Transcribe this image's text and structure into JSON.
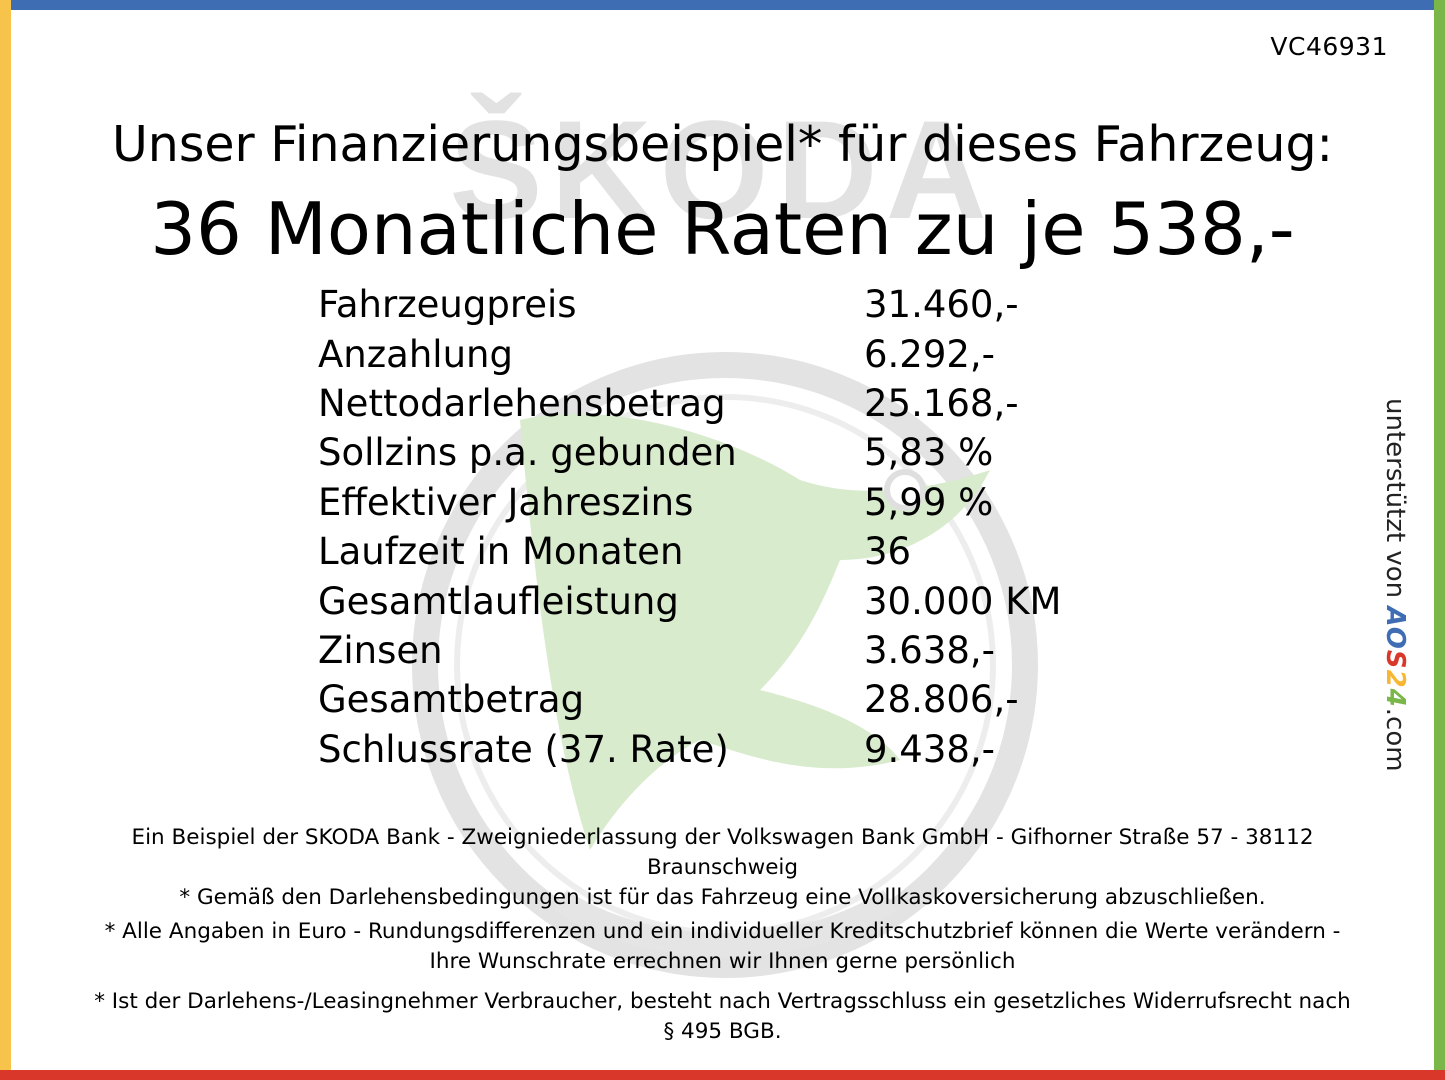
{
  "ref_code": "VC46931",
  "title_line1": "Unser Finanzierungsbeispiel* für dieses Fahrzeug:",
  "title_line2": "36 Monatliche Raten zu je 538,-",
  "watermark_text": "ŠKODA",
  "finance_rows": [
    {
      "label": "Fahrzeugpreis",
      "value": "31.460,-"
    },
    {
      "label": "Anzahlung",
      "value": "6.292,-"
    },
    {
      "label": "Nettodarlehensbetrag",
      "value": "25.168,-"
    },
    {
      "label": "Sollzins p.a. gebunden",
      "value": "5,83 %"
    },
    {
      "label": "Effektiver Jahreszins",
      "value": "5,99 %"
    },
    {
      "label": "Laufzeit in Monaten",
      "value": "36"
    },
    {
      "label": "Gesamtlaufleistung",
      "value": "30.000 KM"
    },
    {
      "label": "Zinsen",
      "value": "3.638,-"
    },
    {
      "label": "Gesamtbetrag",
      "value": "28.806,-"
    },
    {
      "label": "Schlussrate (37. Rate)",
      "value": "9.438,-"
    }
  ],
  "disclaimers": {
    "bank": "Ein Beispiel der SKODA Bank - Zweigniederlassung der Volkswagen Bank GmbH - Gifhorner Straße 57 - 38112 Braunschweig",
    "insurance": "* Gemäß den Darlehensbedingungen ist für das Fahrzeug eine Vollkaskoversicherung abzuschließen.",
    "currency": "* Alle Angaben in Euro - Rundungsdifferenzen und ein individueller Kreditschutzbrief können die Werte verändern - Ihre Wunschrate errechnen wir Ihnen gerne persönlich",
    "withdrawal": "* Ist der Darlehens-/Leasingnehmer Verbraucher, besteht nach Vertragsschluss ein gesetzliches Widerrufsrecht nach § 495 BGB."
  },
  "side_credit": {
    "prefix": "unterstützt von",
    "brand_a": "AO",
    "brand_b": "S",
    "brand_c": "2",
    "brand_d": "4",
    "suffix": ".com"
  },
  "colors": {
    "border_top": "#3e6db4",
    "border_left": "#f7c34a",
    "border_right": "#7ab648",
    "border_bottom": "#d9372a",
    "watermark_green": "#cfe6c2",
    "watermark_gray": "#d6d6d6"
  }
}
